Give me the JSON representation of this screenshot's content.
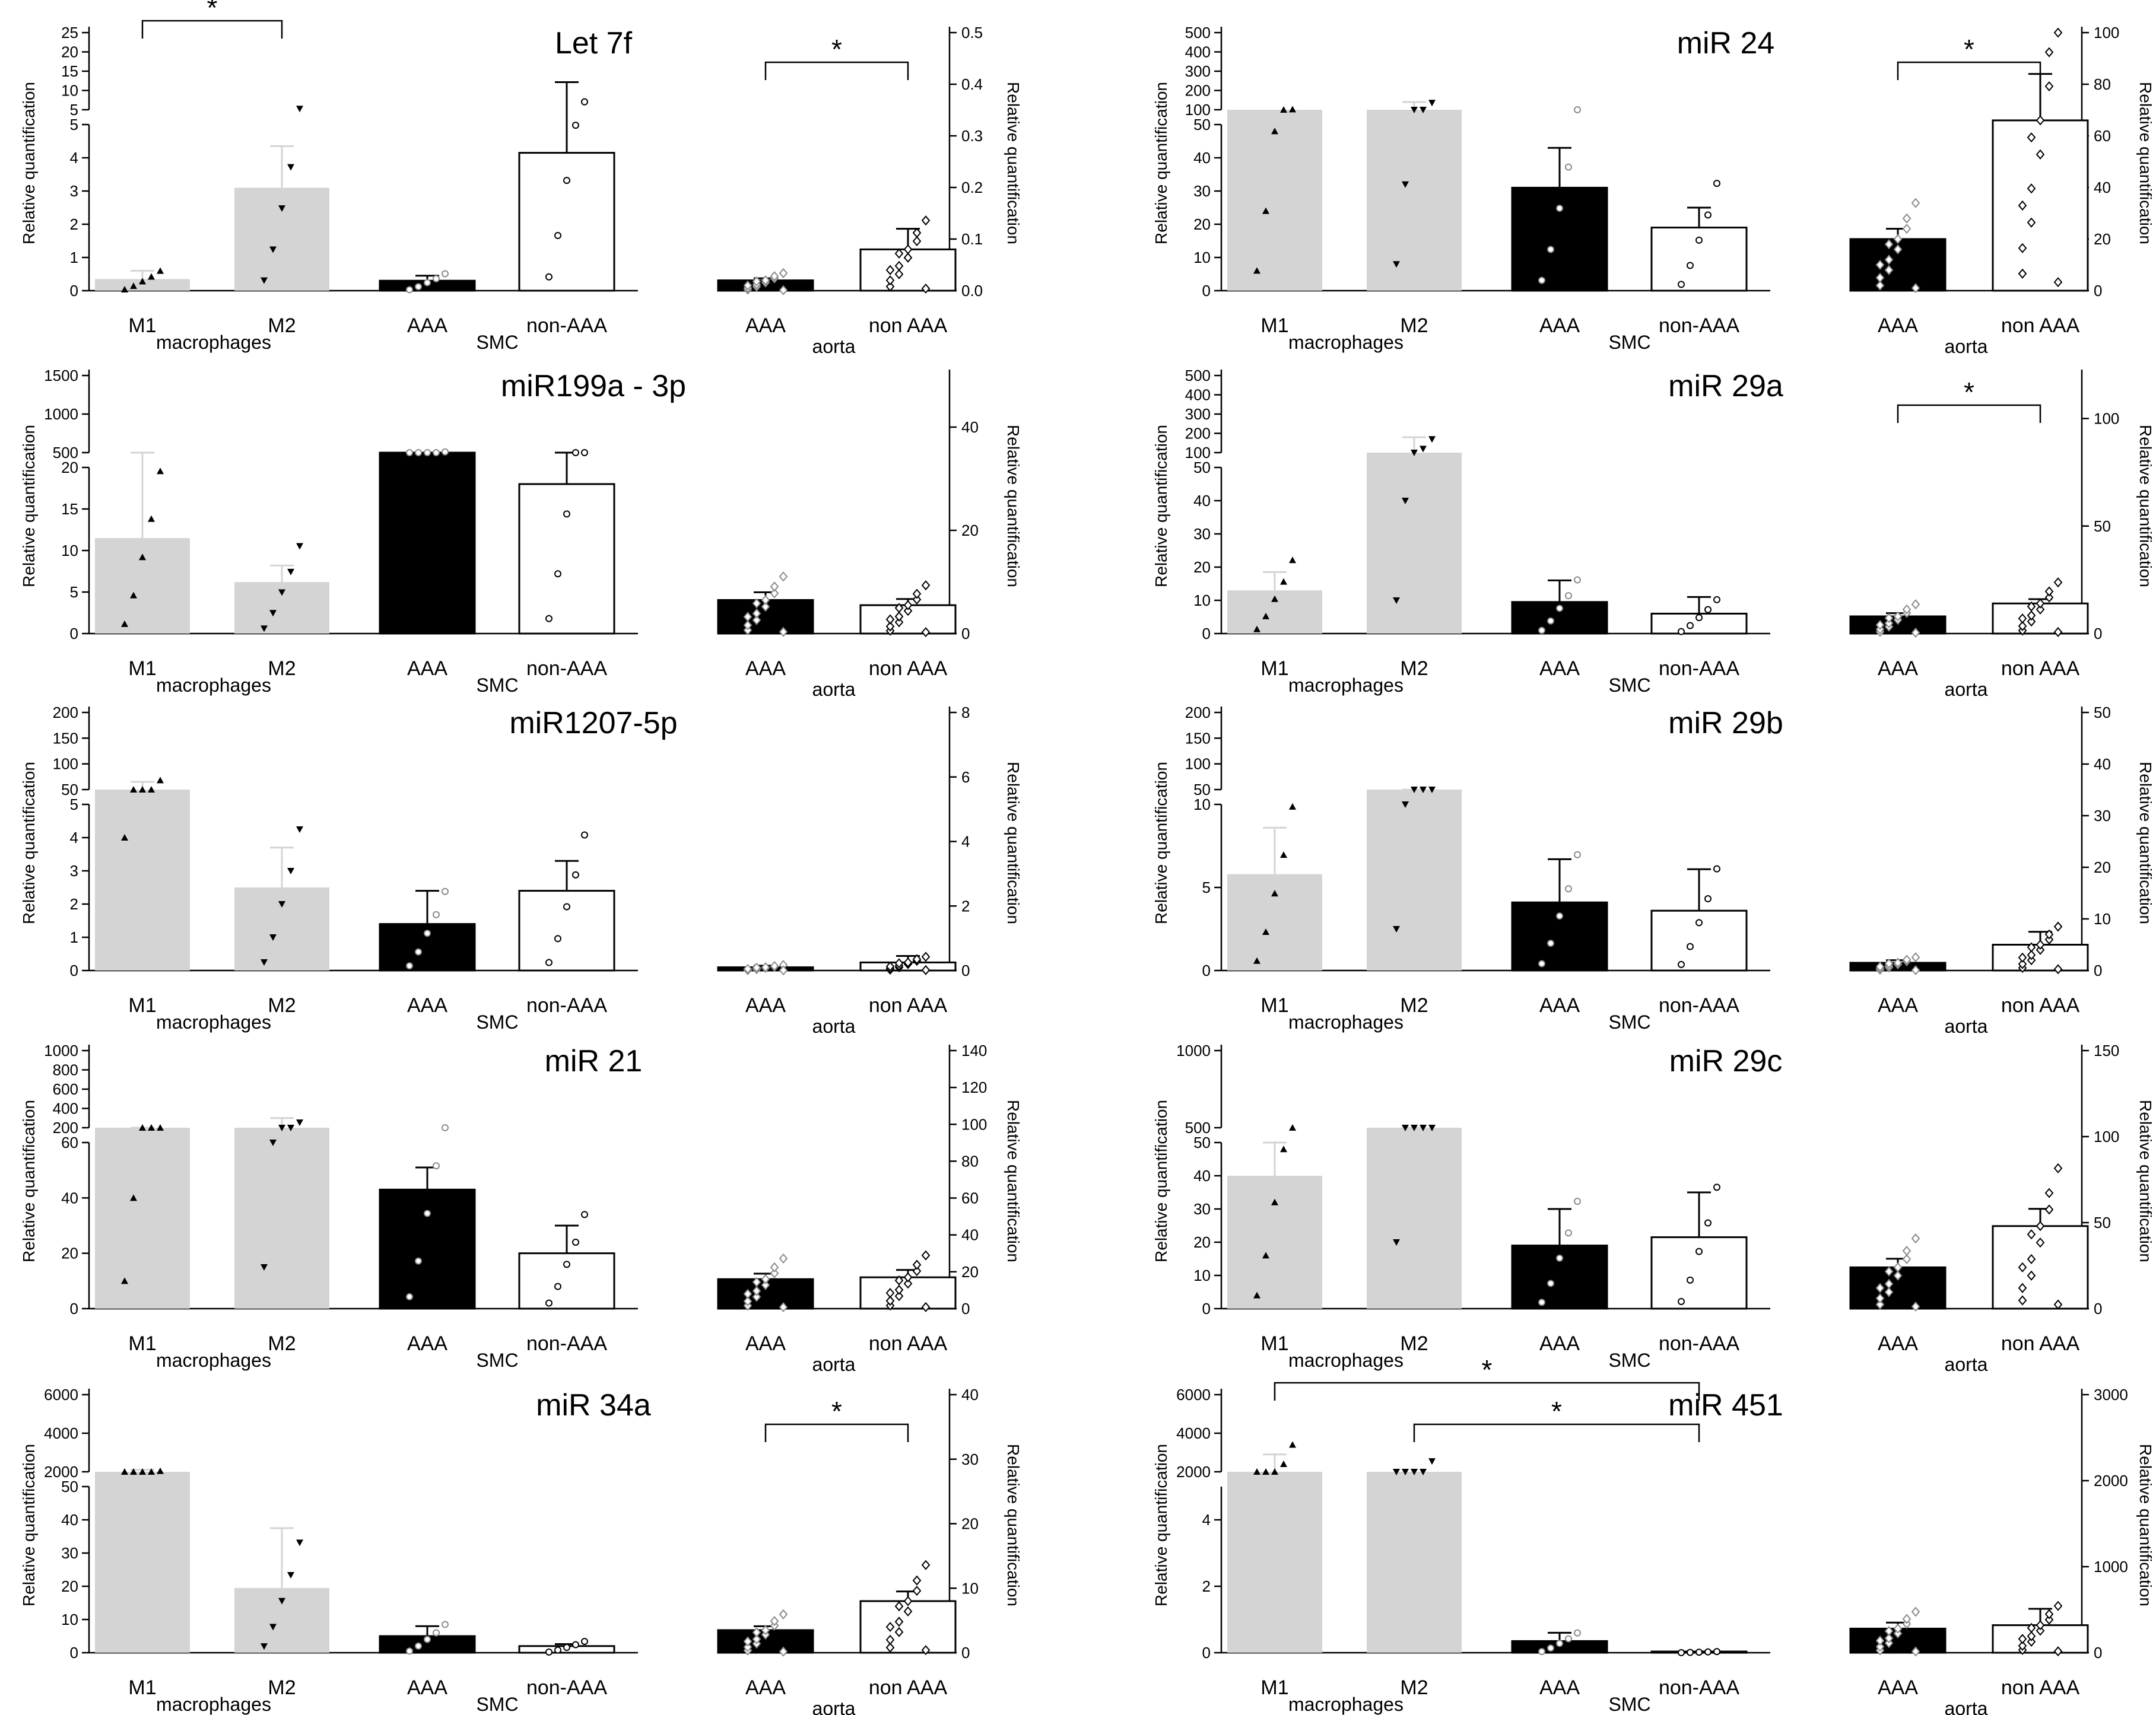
{
  "figure": {
    "ylabel": "Relative quantification",
    "group_labels": {
      "macrophages": "macrophages",
      "smc": "SMC",
      "aorta": "aorta"
    },
    "significance_marker": "*"
  },
  "chart_data": [
    {
      "type": "bar",
      "title": "Let 7f",
      "ylabel": "Relative quantification",
      "categories": [
        "M1",
        "M2",
        "AAA",
        "non-AAA",
        "AAA",
        "non AAA"
      ],
      "groups": [
        "macrophages",
        "SMC",
        "aorta"
      ],
      "left_axis": {
        "lower_range": [
          0,
          5
        ],
        "lower_ticks": [
          "0",
          "1",
          "2",
          "3",
          "4",
          "5"
        ],
        "upper_ticks": [
          "5",
          "10",
          "15",
          "20",
          "25"
        ]
      },
      "right_axis": {
        "range": [
          0,
          0.5
        ],
        "ticks": [
          "0.0",
          "0.1",
          "0.2",
          "0.3",
          "0.4",
          "0.5"
        ]
      },
      "values": [
        0.35,
        3.1,
        0.3,
        4.15,
        0.02,
        0.08
      ],
      "errors": [
        0.25,
        1.25,
        0.15,
        8,
        0.004,
        0.04
      ],
      "significance": [
        [
          "M1",
          "M2"
        ],
        [
          "aorta AAA",
          "aorta non AAA"
        ]
      ]
    },
    {
      "type": "bar",
      "title": "miR 24",
      "ylabel": "Relative quantification",
      "categories": [
        "M1",
        "M2",
        "AAA",
        "non-AAA",
        "AAA",
        "non AAA"
      ],
      "groups": [
        "macrophages",
        "SMC",
        "aorta"
      ],
      "left_axis": {
        "lower_range": [
          0,
          50
        ],
        "lower_ticks": [
          "0",
          "10",
          "20",
          "30",
          "40",
          "50"
        ],
        "upper_ticks": [
          "100",
          "200",
          "300",
          "400",
          "500"
        ]
      },
      "right_axis": {
        "range": [
          0,
          100
        ],
        "ticks": [
          "0",
          "20",
          "40",
          "60",
          "80",
          "100"
        ]
      },
      "values": [
        60,
        80,
        31,
        19,
        20,
        66
      ],
      "errors": [
        0,
        60,
        12,
        6,
        4,
        18
      ],
      "significance": [
        [
          "aorta AAA",
          "aorta non AAA"
        ]
      ]
    },
    {
      "type": "bar",
      "title": "miR199a - 3p",
      "ylabel": "Relative quantification",
      "categories": [
        "M1",
        "M2",
        "AAA",
        "non-AAA",
        "AAA",
        "non AAA"
      ],
      "groups": [
        "macrophages",
        "SMC",
        "aorta"
      ],
      "left_axis": {
        "lower_range": [
          0,
          20
        ],
        "lower_ticks": [
          "0",
          "5",
          "10",
          "15",
          "20"
        ],
        "upper_ticks": [
          "500",
          "1000",
          "1500"
        ]
      },
      "right_axis": {
        "range": [
          0,
          50
        ],
        "ticks": [
          "0",
          "20",
          "40"
        ]
      },
      "values": [
        11.5,
        6.2,
        300,
        18,
        6.5,
        5.5
      ],
      "errors": [
        9,
        2,
        150,
        2.5,
        1.5,
        1.2
      ],
      "significance": []
    },
    {
      "type": "bar",
      "title": "miR 29a",
      "ylabel": "Relative quantification",
      "categories": [
        "M1",
        "M2",
        "AAA",
        "non-AAA",
        "AAA",
        "non AAA"
      ],
      "groups": [
        "macrophages",
        "SMC",
        "aorta"
      ],
      "left_axis": {
        "lower_range": [
          0,
          50
        ],
        "lower_ticks": [
          "0",
          "10",
          "20",
          "30",
          "40",
          "50"
        ],
        "upper_ticks": [
          "100",
          "200",
          "300",
          "400",
          "500"
        ]
      },
      "right_axis": {
        "range": [
          0,
          120
        ],
        "ticks": [
          "0",
          "50",
          "100"
        ]
      },
      "values": [
        13,
        100,
        9.5,
        6,
        8,
        14
      ],
      "errors": [
        5.5,
        80,
        6.5,
        5,
        1.5,
        2
      ],
      "significance": [
        [
          "aorta AAA",
          "aorta non AAA"
        ]
      ]
    },
    {
      "type": "bar",
      "title": "miR1207-5p",
      "ylabel": "Relative quantification",
      "categories": [
        "M1",
        "M2",
        "AAA",
        "non-AAA",
        "AAA",
        "non AAA"
      ],
      "groups": [
        "macrophages",
        "SMC",
        "aorta"
      ],
      "left_axis": {
        "lower_range": [
          0,
          5
        ],
        "lower_ticks": [
          "0",
          "1",
          "2",
          "3",
          "4",
          "5"
        ],
        "upper_ticks": [
          "50",
          "100",
          "150",
          "200"
        ]
      },
      "right_axis": {
        "range": [
          0,
          8
        ],
        "ticks": [
          "0",
          "2",
          "4",
          "6",
          "8"
        ]
      },
      "values": [
        40,
        2.5,
        1.4,
        2.4,
        0.1,
        0.25
      ],
      "errors": [
        25,
        1.2,
        1,
        0.9,
        0.05,
        0.2
      ],
      "significance": []
    },
    {
      "type": "bar",
      "title": "miR 29b",
      "ylabel": "Relative quantification",
      "categories": [
        "M1",
        "M2",
        "AAA",
        "non-AAA",
        "AAA",
        "non AAA"
      ],
      "groups": [
        "macrophages",
        "SMC",
        "aorta"
      ],
      "left_axis": {
        "lower_range": [
          0,
          10
        ],
        "lower_ticks": [
          "0",
          "5",
          "10"
        ],
        "upper_ticks": [
          "50",
          "100",
          "150",
          "200"
        ]
      },
      "right_axis": {
        "range": [
          0,
          50
        ],
        "ticks": [
          "0",
          "10",
          "20",
          "30",
          "40",
          "50"
        ]
      },
      "values": [
        5.8,
        25,
        4.1,
        3.6,
        1.5,
        5
      ],
      "errors": [
        2.8,
        20,
        2.6,
        2.5,
        0.5,
        2.5
      ],
      "significance": []
    },
    {
      "type": "bar",
      "title": "miR 21",
      "ylabel": "Relative quantification",
      "categories": [
        "M1",
        "M2",
        "AAA",
        "non-AAA",
        "AAA",
        "non AAA"
      ],
      "groups": [
        "macrophages",
        "SMC",
        "aorta"
      ],
      "left_axis": {
        "lower_range": [
          0,
          60
        ],
        "lower_ticks": [
          "0",
          "20",
          "40",
          "60"
        ],
        "upper_ticks": [
          "200",
          "400",
          "600",
          "800",
          "1000"
        ]
      },
      "right_axis": {
        "range": [
          0,
          140
        ],
        "ticks": [
          "0",
          "20",
          "40",
          "60",
          "80",
          "100",
          "120",
          "140"
        ]
      },
      "values": [
        100,
        150,
        43,
        20,
        16,
        17
      ],
      "errors": [
        40,
        150,
        8,
        10,
        3,
        4
      ],
      "significance": []
    },
    {
      "type": "bar",
      "title": "miR 29c",
      "ylabel": "Relative quantification",
      "categories": [
        "M1",
        "M2",
        "AAA",
        "non-AAA",
        "AAA",
        "non AAA"
      ],
      "groups": [
        "macrophages",
        "SMC",
        "aorta"
      ],
      "left_axis": {
        "lower_range": [
          0,
          50
        ],
        "lower_ticks": [
          "0",
          "10",
          "20",
          "30",
          "40",
          "50"
        ],
        "upper_ticks": [
          "500",
          "1000"
        ]
      },
      "right_axis": {
        "range": [
          0,
          150
        ],
        "ticks": [
          "0",
          "50",
          "100",
          "150"
        ]
      },
      "values": [
        40,
        200,
        19,
        21.5,
        24,
        48
      ],
      "errors": [
        10,
        150,
        11,
        13.5,
        5,
        10
      ],
      "significance": []
    },
    {
      "type": "bar",
      "title": "miR 34a",
      "ylabel": "Relative quantification",
      "categories": [
        "M1",
        "M2",
        "AAA",
        "non-AAA",
        "AAA",
        "non AAA"
      ],
      "groups": [
        "macrophages",
        "SMC",
        "aorta"
      ],
      "left_axis": {
        "lower_range": [
          0,
          50
        ],
        "lower_ticks": [
          "0",
          "10",
          "20",
          "30",
          "40",
          "50"
        ],
        "upper_ticks": [
          "2000",
          "4000",
          "6000"
        ]
      },
      "right_axis": {
        "range": [
          0,
          40
        ],
        "ticks": [
          "0",
          "10",
          "20",
          "30",
          "40"
        ]
      },
      "values": [
        1200,
        19.5,
        5,
        2,
        3.5,
        8
      ],
      "errors": [
        900,
        18,
        3,
        0.6,
        0.6,
        1.5
      ],
      "significance": [
        [
          "aorta AAA",
          "aorta non AAA"
        ]
      ]
    },
    {
      "type": "bar",
      "title": "miR 451",
      "ylabel": "Relative quantification",
      "categories": [
        "M1",
        "M2",
        "AAA",
        "non-AAA",
        "AAA",
        "non AAA"
      ],
      "groups": [
        "macrophages",
        "SMC",
        "aorta"
      ],
      "left_axis": {
        "lower_range": [
          0,
          5
        ],
        "lower_ticks": [
          "0",
          "2",
          "4"
        ],
        "upper_ticks": [
          "2000",
          "4000",
          "6000"
        ]
      },
      "right_axis": {
        "range": [
          0,
          3000
        ],
        "ticks": [
          "0",
          "1000",
          "2000",
          "3000"
        ]
      },
      "values": [
        2000,
        1500,
        0.35,
        0.02,
        280,
        320
      ],
      "errors": [
        900,
        0,
        0.25,
        0.01,
        70,
        190
      ],
      "significance": [
        [
          "M1",
          "non-AAA"
        ],
        [
          "M2",
          "non-AAA"
        ]
      ]
    }
  ]
}
